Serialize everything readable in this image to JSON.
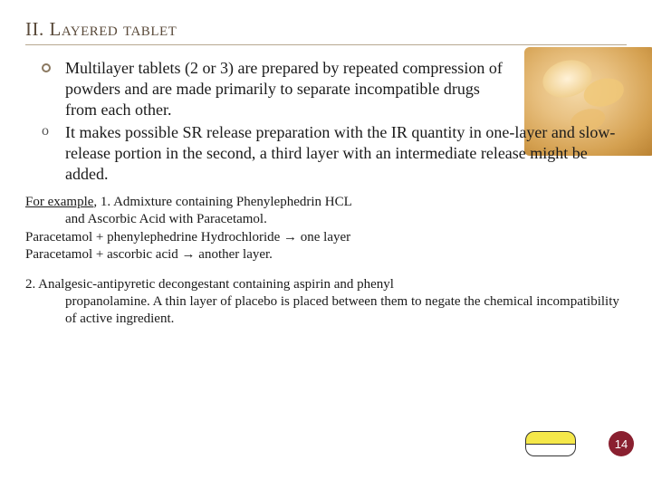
{
  "title": "II. Layered tablet",
  "hero_image": {
    "name": "tablets-photo",
    "bg_gradient": [
      "#f4d9a8",
      "#e8c080",
      "#d4a050",
      "#b88030"
    ]
  },
  "bullets": [
    {
      "marker": "ring",
      "text": "Multilayer tablets (2 or 3) are prepared by repeated compression of powders and are made primarily to separate incompatible drugs from each other."
    },
    {
      "marker": "o",
      "text": "It makes possible SR release preparation with the IR quantity in one-layer and slow-release portion in the second, a third layer with an intermediate release might be added."
    }
  ],
  "example1": {
    "lead": "For example",
    "line1_rest": ", 1. Admixture containing Phenylephedrin HCL",
    "line2": "and Ascorbic Acid with Paracetamol.",
    "line3": "Paracetamol + phenylephedrine Hydrochloride → one layer",
    "line4": "Paracetamol + ascorbic acid → another layer."
  },
  "example2": {
    "line1": "2. Analgesic-antipyretic decongestant containing aspirin and phenyl",
    "line2": "propanolamine. A thin layer of placebo is placed between them to negate the chemical incompatibility of active ingredient."
  },
  "tablet_diagram": {
    "top_color": "#f5e84a",
    "bottom_color": "#ffffff",
    "border_color": "#333333"
  },
  "page_number": "14",
  "badge_color": "#8a2030"
}
